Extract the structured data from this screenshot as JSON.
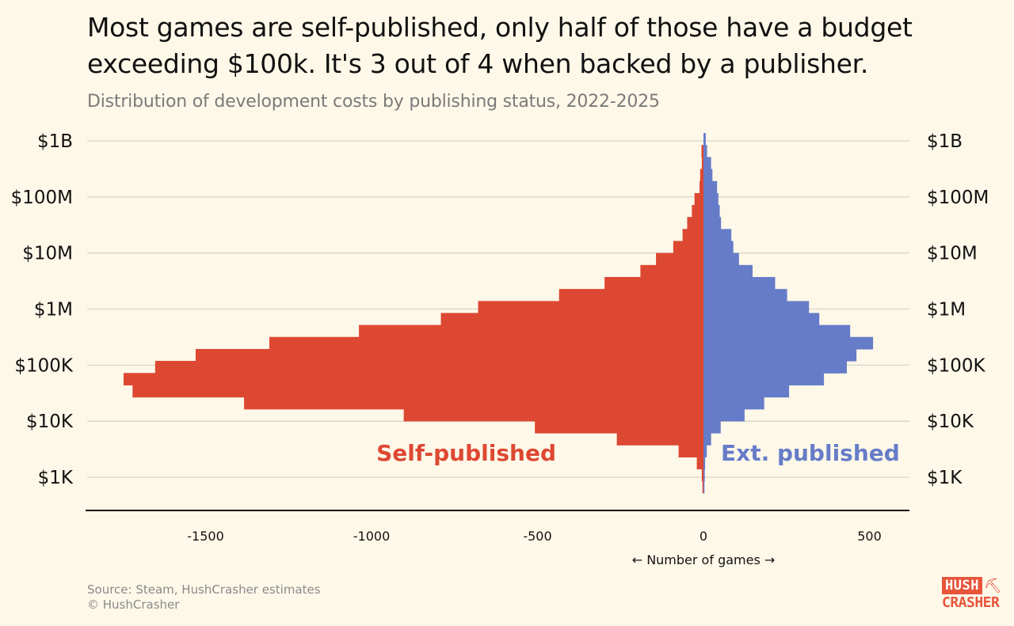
{
  "header": {
    "title": "Most games are self-published, only half of those have a budget exceeding $100k. It's 3 out of 4 when backed by a publisher.",
    "subtitle": "Distribution of development costs by publishing status, 2022-2025"
  },
  "chart_data": {
    "type": "bar",
    "orientation": "horizontal back-to-back histogram",
    "title": "Most games are self-published, only half of those have a budget exceeding $100k. It's 3 out of 4 when backed by a publisher.",
    "subtitle": "Distribution of development costs by publishing status, 2022-2025",
    "xlabel": "← Number of games →",
    "x_ticks": [
      -1500,
      -1000,
      -500,
      0,
      500
    ],
    "x_tick_labels": [
      "-1500",
      "-1000",
      "-500",
      "0",
      "500"
    ],
    "xlim": [
      -1860,
      620
    ],
    "y_scale": "log",
    "y_ticks": [
      1000,
      10000,
      100000,
      1000000,
      10000000,
      100000000,
      1000000000
    ],
    "y_tick_labels": [
      "$1K",
      "$10K",
      "$100K",
      "$1M",
      "$10M",
      "$100M",
      "$1B"
    ],
    "grid": "horizontal",
    "bin_edges_usd_top_to_bottom": [
      1380000000,
      844000000,
      515000000,
      315000000,
      192000000,
      117000000,
      71800000,
      43900000,
      26800000,
      16400000,
      10000000,
      6110000,
      3730000,
      2280000,
      1390000,
      851000,
      520000,
      318000,
      194000,
      119000,
      72400,
      44300,
      27000,
      16500,
      10100,
      6170,
      3770,
      2300,
      1410,
      859,
      525
    ],
    "series": [
      {
        "name": "Self-published",
        "side": "left",
        "color": "#dd4832",
        "values": [
          0,
          6,
          5,
          10,
          12,
          27,
          35,
          49,
          63,
          91,
          143,
          190,
          298,
          435,
          679,
          791,
          1038,
          1308,
          1530,
          1652,
          1747,
          1720,
          1384,
          903,
          508,
          261,
          75,
          20,
          5,
          3
        ]
      },
      {
        "name": "Ext. published",
        "side": "right",
        "color": "#667cc8",
        "values": [
          7,
          11,
          23,
          27,
          41,
          45,
          49,
          53,
          84,
          90,
          107,
          148,
          216,
          252,
          318,
          349,
          442,
          511,
          461,
          432,
          363,
          258,
          183,
          124,
          52,
          23,
          10,
          5,
          4,
          3
        ]
      }
    ]
  },
  "footer": {
    "source": "Source: Steam, HushCrasher estimates",
    "copyright": "© HushCrasher"
  },
  "logo": {
    "line1": "HUSH",
    "line2": "CRASHER",
    "icon": "pickaxe-icon"
  }
}
